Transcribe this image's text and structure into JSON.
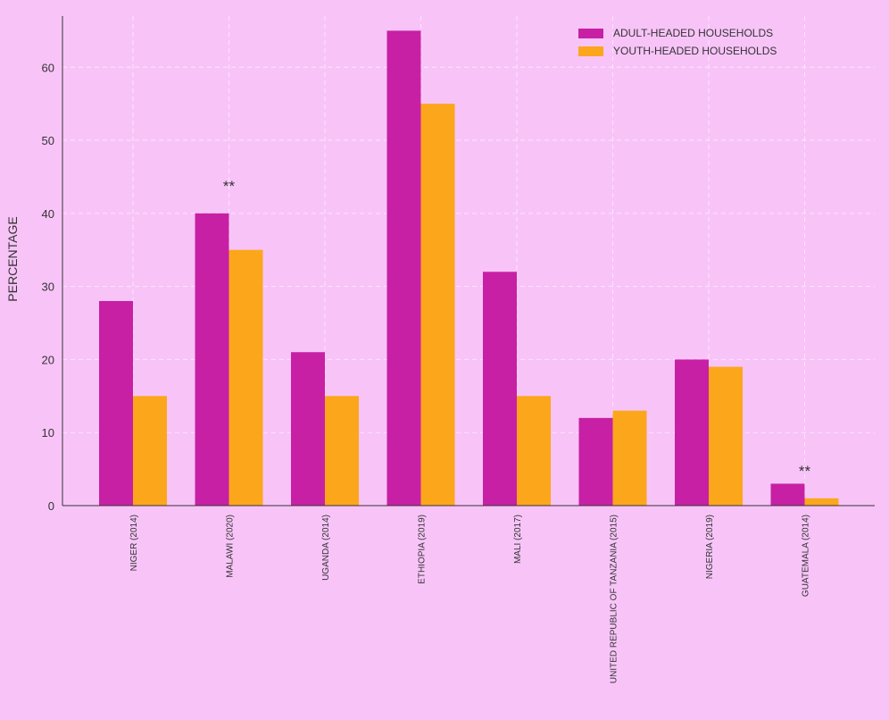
{
  "colors": {
    "background": "#f8c4f8",
    "adult": "#c720a4",
    "youth": "#fca61c",
    "text": "#333333",
    "grid": "#ffffff"
  },
  "chart_data": {
    "type": "bar",
    "title": "",
    "xlabel": "",
    "ylabel": "PERCENTAGE",
    "ylim": [
      0,
      67
    ],
    "yticks": [
      0,
      10,
      20,
      30,
      40,
      50,
      60
    ],
    "grid": true,
    "legend_position": "top-right",
    "categories": [
      "NIGER (2014)",
      "MALAWI (2020)",
      "UGANDA (2014)",
      "ETHIOPIA (2019)",
      "MALI (2017)",
      "UNITED REPUBLIC OF TANZANIA (2015)",
      "NIGERIA (2019)",
      "GUATEMALA (2014)"
    ],
    "series": [
      {
        "name": "ADULT-HEADED HOUSEHOLDS",
        "values": [
          28,
          40,
          21,
          65,
          32,
          12,
          20,
          3
        ]
      },
      {
        "name": "YOUTH-HEADED HOUSEHOLDS",
        "values": [
          15,
          35,
          15,
          55,
          15,
          13,
          19,
          1
        ]
      }
    ],
    "annotations": [
      {
        "category": "MALAWI (2020)",
        "text": "**",
        "value": 44
      },
      {
        "category": "GUATEMALA (2014)",
        "text": "**",
        "value": 5
      }
    ]
  }
}
